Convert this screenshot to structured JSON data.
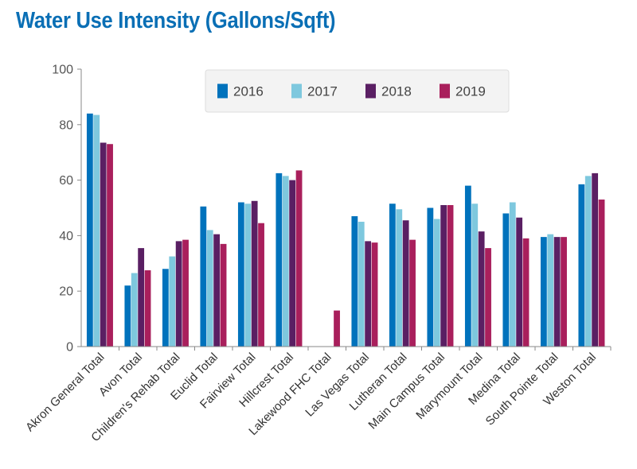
{
  "title": "Water Use Intensity (Gallons/Sqft)",
  "colors": {
    "title": "#0a6fb5",
    "series": [
      "#0072bc",
      "#7ec8de",
      "#5a1f63",
      "#a91f5c"
    ]
  },
  "chart_data": {
    "type": "bar",
    "title": "Water Use Intensity (Gallons/Sqft)",
    "xlabel": "",
    "ylabel": "",
    "ylim": [
      0,
      100
    ],
    "yticks": [
      0,
      20,
      40,
      60,
      80,
      100
    ],
    "grid": false,
    "legend_position": "top-center",
    "categories": [
      "Akron General Total",
      "Avon Total",
      "Children's Rehab Total",
      "Euclid Total",
      "Fairview Total",
      "Hillcrest Total",
      "Lakewood FHC Total",
      "Las Vegas Total",
      "Lutheran Total",
      "Main Campus Total",
      "Marymount Total",
      "Medina Total",
      "South Pointe Total",
      "Weston Total"
    ],
    "series": [
      {
        "name": "2016",
        "values": [
          84,
          22,
          28,
          50.5,
          52,
          62.5,
          null,
          47,
          51.5,
          50,
          58,
          48,
          39.5,
          58.5
        ]
      },
      {
        "name": "2017",
        "values": [
          83.5,
          26.5,
          32.5,
          42,
          51.5,
          61.5,
          null,
          45,
          49.5,
          46,
          51.5,
          52,
          40.5,
          61.5
        ]
      },
      {
        "name": "2018",
        "values": [
          73.5,
          35.5,
          38,
          40.5,
          52.5,
          60,
          null,
          38,
          45.5,
          51,
          41.5,
          46.5,
          39.5,
          62.5
        ]
      },
      {
        "name": "2019",
        "values": [
          73,
          27.5,
          38.5,
          37,
          44.5,
          63.5,
          13,
          37.5,
          38.5,
          51,
          35.5,
          39,
          39.5,
          53
        ]
      }
    ]
  }
}
